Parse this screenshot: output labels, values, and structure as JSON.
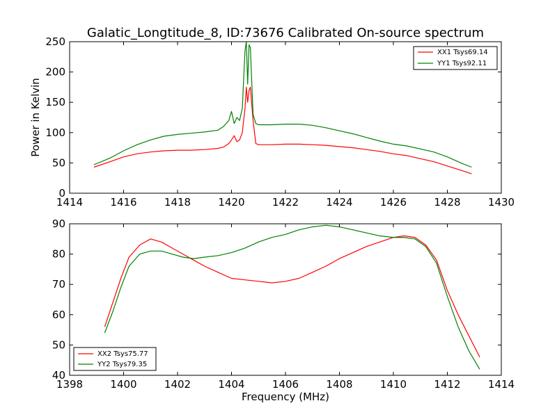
{
  "title": "Galatic_Longtitude_8, ID:73676 Calibrated On-source spectrum",
  "colors": {
    "xx": "#ff0000",
    "yy": "#008000",
    "axes": "#000000",
    "background": "#ffffff"
  },
  "chart_data": [
    {
      "type": "line",
      "title": "Galatic_Longtitude_8, ID:73676 Calibrated On-source spectrum",
      "xlabel": "",
      "ylabel": "Power in Kelvin",
      "xlim": [
        1414,
        1430
      ],
      "ylim": [
        0,
        250
      ],
      "xticks": [
        1414,
        1416,
        1418,
        1420,
        1422,
        1424,
        1426,
        1428,
        1430
      ],
      "yticks": [
        0,
        50,
        100,
        150,
        200,
        250
      ],
      "grid": false,
      "legend_position": "top-right",
      "series": [
        {
          "name": "XX1 Tsys69.14",
          "color": "#ff0000",
          "x": [
            1414.9,
            1415.5,
            1416,
            1416.5,
            1417,
            1417.5,
            1418,
            1418.5,
            1419,
            1419.5,
            1419.7,
            1419.9,
            1420.0,
            1420.1,
            1420.2,
            1420.3,
            1420.4,
            1420.5,
            1420.55,
            1420.6,
            1420.65,
            1420.7,
            1420.8,
            1420.9,
            1421,
            1421.5,
            1422,
            1422.5,
            1423,
            1423.5,
            1424,
            1424.5,
            1425,
            1425.5,
            1426,
            1426.5,
            1427,
            1427.5,
            1428,
            1428.5,
            1428.9
          ],
          "y": [
            43,
            52,
            60,
            65,
            68,
            70,
            71,
            71,
            72,
            74,
            76,
            82,
            88,
            95,
            85,
            88,
            100,
            140,
            175,
            150,
            170,
            175,
            120,
            82,
            80,
            80,
            81,
            81,
            80,
            79,
            77,
            75,
            72,
            69,
            65,
            62,
            57,
            52,
            45,
            38,
            32
          ]
        },
        {
          "name": "YY1 Tsys92.11",
          "color": "#008000",
          "x": [
            1414.9,
            1415.5,
            1416,
            1416.5,
            1417,
            1417.5,
            1418,
            1418.5,
            1419,
            1419.5,
            1419.7,
            1419.9,
            1420.0,
            1420.1,
            1420.2,
            1420.3,
            1420.4,
            1420.5,
            1420.55,
            1420.6,
            1420.65,
            1420.7,
            1420.8,
            1420.9,
            1421,
            1421.5,
            1422,
            1422.5,
            1423,
            1423.5,
            1424,
            1424.5,
            1425,
            1425.5,
            1426,
            1426.5,
            1427,
            1427.5,
            1428,
            1428.5,
            1428.9
          ],
          "y": [
            47,
            58,
            70,
            80,
            88,
            94,
            97,
            99,
            101,
            104,
            110,
            120,
            135,
            115,
            125,
            120,
            140,
            235,
            250,
            180,
            245,
            240,
            130,
            115,
            113,
            113,
            114,
            114,
            112,
            108,
            103,
            98,
            92,
            86,
            81,
            78,
            73,
            68,
            60,
            50,
            43
          ]
        }
      ]
    },
    {
      "type": "line",
      "title": "",
      "xlabel": "Frequency (MHz)",
      "ylabel": "",
      "xlim": [
        1398,
        1414
      ],
      "ylim": [
        40,
        90
      ],
      "xticks": [
        1398,
        1400,
        1402,
        1404,
        1406,
        1408,
        1410,
        1412,
        1414
      ],
      "yticks": [
        40,
        50,
        60,
        70,
        80,
        90
      ],
      "grid": false,
      "legend_position": "bottom-left",
      "series": [
        {
          "name": "XX2 Tsys75.77",
          "color": "#ff0000",
          "x": [
            1399.3,
            1399.6,
            1399.9,
            1400.2,
            1400.6,
            1401,
            1401.4,
            1401.8,
            1402.2,
            1402.6,
            1403,
            1403.5,
            1404,
            1404.5,
            1405,
            1405.5,
            1406,
            1406.5,
            1407,
            1407.5,
            1408,
            1408.5,
            1409,
            1409.5,
            1410,
            1410.4,
            1410.8,
            1411.2,
            1411.6,
            1412,
            1412.4,
            1412.8,
            1413.2
          ],
          "y": [
            56,
            64,
            72,
            79,
            83,
            85,
            84,
            82,
            80,
            78,
            76,
            74,
            72,
            71.5,
            71,
            70.5,
            71,
            72,
            74,
            76,
            78.5,
            80.5,
            82.5,
            84,
            85.5,
            86,
            85.5,
            83,
            78,
            68,
            60,
            53,
            46
          ]
        },
        {
          "name": "YY2 Tsys79.35",
          "color": "#008000",
          "x": [
            1399.3,
            1399.6,
            1399.9,
            1400.2,
            1400.6,
            1401,
            1401.4,
            1401.8,
            1402.2,
            1402.6,
            1403,
            1403.5,
            1404,
            1404.5,
            1405,
            1405.5,
            1406,
            1406.5,
            1407,
            1407.5,
            1408,
            1408.5,
            1409,
            1409.5,
            1410,
            1410.4,
            1410.8,
            1411.2,
            1411.6,
            1412,
            1412.4,
            1412.8,
            1413.2
          ],
          "y": [
            54,
            61,
            69,
            76,
            80,
            81,
            81,
            80,
            79,
            78.5,
            79,
            79.5,
            80.5,
            82,
            84,
            85.5,
            86.5,
            88,
            89,
            89.5,
            89,
            88,
            87,
            86,
            85.5,
            85.5,
            85,
            82.5,
            77,
            66,
            56,
            48,
            42
          ]
        }
      ]
    }
  ]
}
